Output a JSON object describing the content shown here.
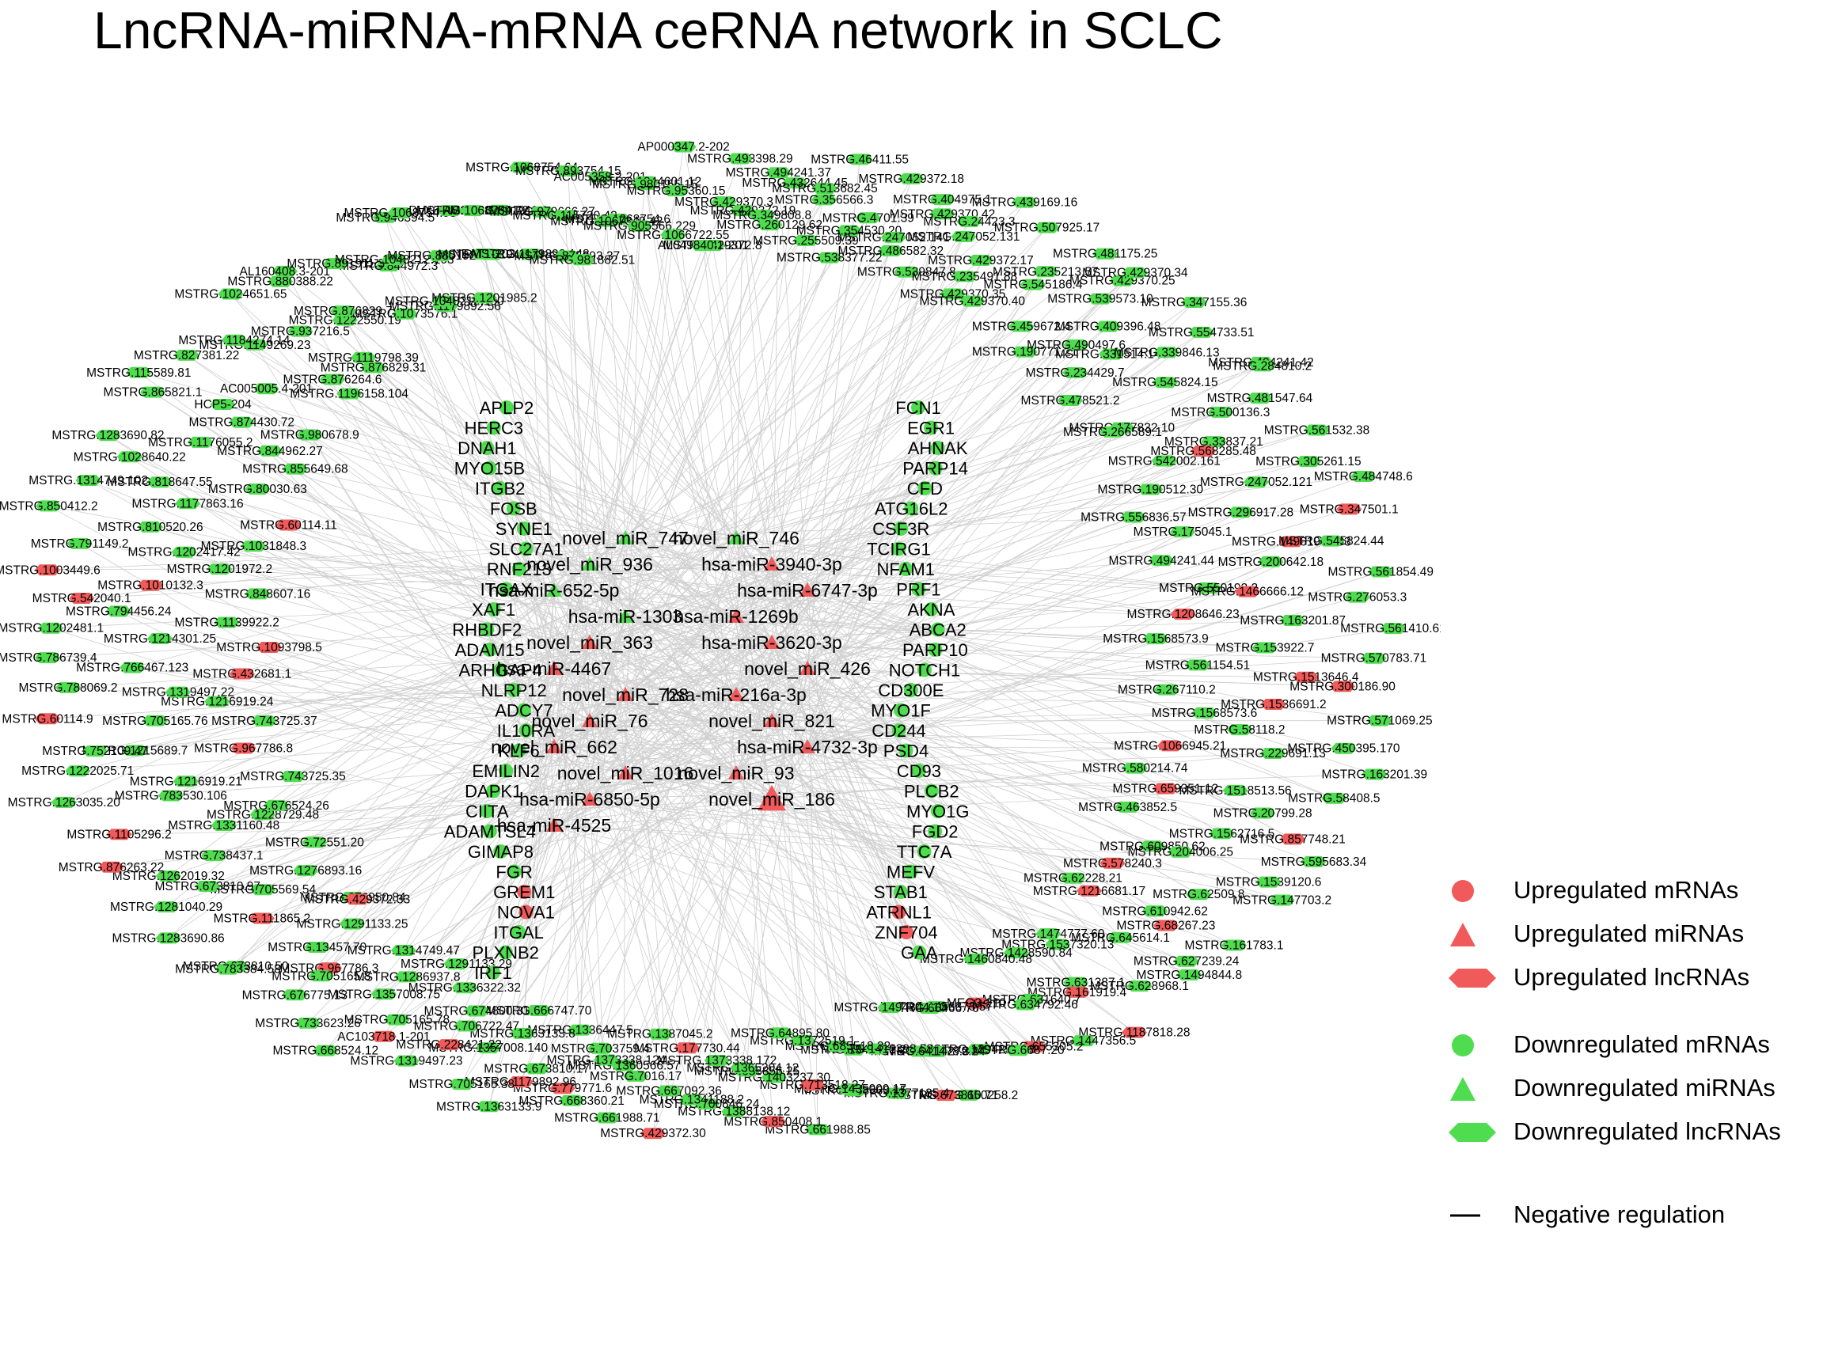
{
  "title": "LncRNA-miRNA-mRNA ceRNA network in SCLC",
  "colors": {
    "up": "#f05a5a",
    "down": "#4fdc4f",
    "edge": "#cfcfcf"
  },
  "legend": [
    {
      "shape": "circle",
      "color": "#f05a5a",
      "label": "Upregulated mRNAs"
    },
    {
      "shape": "triangle",
      "color": "#f05a5a",
      "label": "Upregulated miRNAs"
    },
    {
      "shape": "hexagon",
      "color": "#f05a5a",
      "label": "Upregulated lncRNAs"
    },
    {
      "shape": "circle",
      "color": "#4fdc4f",
      "label": "Downregulated mRNAs"
    },
    {
      "shape": "triangle",
      "color": "#4fdc4f",
      "label": "Downregulated miRNAs"
    },
    {
      "shape": "hexagon",
      "color": "#4fdc4f",
      "label": "Downregulated lncRNAs"
    },
    {
      "shape": "line",
      "color": "#000000",
      "label": "Negative regulation"
    }
  ],
  "mirnas": [
    {
      "label": "novel_miR_747",
      "up": false
    },
    {
      "label": "novel_miR_746",
      "up": false
    },
    {
      "label": "novel_miR_936",
      "up": false
    },
    {
      "label": "hsa-miR-3940-3p",
      "up": true
    },
    {
      "label": "hsa-miR-652-5p",
      "up": false
    },
    {
      "label": "hsa-miR-6747-3p",
      "up": true
    },
    {
      "label": "hsa-miR-1303",
      "up": false
    },
    {
      "label": "hsa-miR-1269b",
      "up": true
    },
    {
      "label": "novel_miR_363",
      "up": true
    },
    {
      "label": "hsa-miR-3620-3p",
      "up": true
    },
    {
      "label": "hsa-miR-4467",
      "up": true
    },
    {
      "label": "novel_miR_426",
      "up": true
    },
    {
      "label": "novel_miR_728",
      "up": true
    },
    {
      "label": "hsa-miR-216a-3p",
      "up": true
    },
    {
      "label": "novel_miR_76",
      "up": true
    },
    {
      "label": "novel_miR_821",
      "up": true
    },
    {
      "label": "novel_miR_662",
      "up": true
    },
    {
      "label": "hsa-miR-4732-3p",
      "up": true
    },
    {
      "label": "novel_miR_1016",
      "up": true
    },
    {
      "label": "novel_miR_93",
      "up": true
    },
    {
      "label": "hsa-miR-6850-5p",
      "up": true
    },
    {
      "label": "novel_miR_186",
      "up": true
    },
    {
      "label": "hsa-miR-4525",
      "up": true
    }
  ],
  "mrnas": [
    {
      "label": "APLP2",
      "up": false
    },
    {
      "label": "FCN1",
      "up": false
    },
    {
      "label": "HERC3",
      "up": false
    },
    {
      "label": "EGR1",
      "up": false
    },
    {
      "label": "DNAH1",
      "up": false
    },
    {
      "label": "AHNAK",
      "up": false
    },
    {
      "label": "MYO15B",
      "up": false
    },
    {
      "label": "PARP14",
      "up": false
    },
    {
      "label": "ITGB2",
      "up": false
    },
    {
      "label": "CFD",
      "up": false
    },
    {
      "label": "FOSB",
      "up": false
    },
    {
      "label": "ATG16L2",
      "up": false
    },
    {
      "label": "SYNE1",
      "up": false
    },
    {
      "label": "CSF3R",
      "up": false
    },
    {
      "label": "SLC27A1",
      "up": false
    },
    {
      "label": "TCIRG1",
      "up": false
    },
    {
      "label": "RNF213",
      "up": false
    },
    {
      "label": "NFAM1",
      "up": false
    },
    {
      "label": "ITGAX",
      "up": false
    },
    {
      "label": "PRF1",
      "up": false
    },
    {
      "label": "XAF1",
      "up": false
    },
    {
      "label": "AKNA",
      "up": false
    },
    {
      "label": "RHBDF2",
      "up": false
    },
    {
      "label": "ABCA2",
      "up": false
    },
    {
      "label": "ADAM15",
      "up": false
    },
    {
      "label": "PARP10",
      "up": false
    },
    {
      "label": "ARHGAP4",
      "up": false
    },
    {
      "label": "NOTCH1",
      "up": false
    },
    {
      "label": "NLRP12",
      "up": false
    },
    {
      "label": "CD300E",
      "up": false
    },
    {
      "label": "ADCY7",
      "up": false
    },
    {
      "label": "MYO1F",
      "up": false
    },
    {
      "label": "IL10RA",
      "up": false
    },
    {
      "label": "CD244",
      "up": false
    },
    {
      "label": "KLF6",
      "up": false
    },
    {
      "label": "PSD4",
      "up": false
    },
    {
      "label": "EMILIN2",
      "up": false
    },
    {
      "label": "CD93",
      "up": false
    },
    {
      "label": "DAPK1",
      "up": false
    },
    {
      "label": "PLCB2",
      "up": false
    },
    {
      "label": "CIITA",
      "up": false
    },
    {
      "label": "MYO1G",
      "up": false
    },
    {
      "label": "ADAMTSL4",
      "up": false
    },
    {
      "label": "FGD2",
      "up": false
    },
    {
      "label": "GIMAP8",
      "up": false
    },
    {
      "label": "TTC7A",
      "up": false
    },
    {
      "label": "FGR",
      "up": false
    },
    {
      "label": "MEFV",
      "up": false
    },
    {
      "label": "GREM1",
      "up": true
    },
    {
      "label": "STAB1",
      "up": false
    },
    {
      "label": "NOVA1",
      "up": true
    },
    {
      "label": "ATRNL1",
      "up": true
    },
    {
      "label": "ITGAL",
      "up": false
    },
    {
      "label": "ZNF704",
      "up": true
    },
    {
      "label": "PLXNB2",
      "up": false
    },
    {
      "label": "GAA",
      "up": false
    },
    {
      "label": "IRF1",
      "up": false
    }
  ],
  "lncrnas": [
    "MSTRG.429372.8",
    "MSTRG.429370.3",
    "MSTRG.493398.29",
    "MSTRG.429372.19",
    "MSTRG.349808.8",
    "MSTRG.494241.37",
    "MSTRG.260129.62",
    "MSTRG.432644.45",
    "MSTRG.513682.45",
    "MSTRG.255509.39",
    "MSTRG.356566.3",
    "MSTRG.46411.55",
    "MSTRG.538377.22",
    "MSTRG.4701.39",
    "MSTRG.429372.18",
    "MSTRG.354530.20",
    "MSTRG.247052.141",
    "MSTRG.404975.1",
    "MSTRG.486582.32",
    "MSTRG.429370.42",
    "MSTRG.24423.3",
    "MSTRG.539847.8",
    "MSTRG.247052.131",
    "MSTRG.439169.16",
    "MSTRG.429370.35",
    "MSTRG.429372.17",
    "MSTRG.507925.17",
    "MSTRG.235491.88",
    "MSTRG.545186.4",
    "MSTRG.481175.25",
    "MSTRG.429370.40",
    "MSTRG.235213.57",
    "MSTRG.429370.25",
    "MSTRG.459672.4",
    "MSTRG.539573.10",
    "MSTRG.429370.34",
    "MSTRG.190771.21",
    "MSTRG.409396.48",
    "MSTRG.347155.36",
    "MSTRG.490497.6",
    "MSTRG.331514.143",
    "MSTRG.554733.51",
    "MSTRG.234429.7",
    "MSTRG.339846.13",
    "MSTRG.494241.42",
    "MSTRG.478521.2",
    "MSTRG.545824.15",
    "MSTRG.284810.2",
    "MSTRG.177832.10",
    "MSTRG.500136.3",
    "MSTRG.481547.64",
    "MSTRG.266589.1",
    "MSTRG.33837.21",
    "MSTRG.561532.38",
    "MSTRG.542002.161",
    "MSTRG.568285.48",
    "MSTRG.305261.15",
    "MSTRG.190512.30",
    "MSTRG.247052.121",
    "MSTRG.484748.6",
    "MSTRG.556836.57",
    "MSTRG.296917.28",
    "MSTRG.347501.1",
    "MSTRG.175045.1",
    "MSTRG.1496194.103",
    "MSTRG.545824.44",
    "MSTRG.494241.44",
    "MSTRG.200642.18",
    "MSTRG.561854.49",
    "MSTRG.550192.2",
    "MSTRG.1466666.12",
    "MSTRG.276053.3",
    "MSTRG.1208646.23",
    "MSTRG.163201.87",
    "MSTRG.561410.61",
    "MSTRG.1568573.9",
    "MSTRG.153922.7",
    "MSTRG.570783.71",
    "MSTRG.561154.51",
    "MSTRG.1513646.4",
    "MSTRG.300186.90",
    "MSTRG.267110.2",
    "MSTRG.1536691.2",
    "MSTRG.571069.25",
    "MSTRG.1568573.6",
    "MSTRG.58118.2",
    "MSTRG.450395.170",
    "MSTRG.1066945.21",
    "MSTRG.229691.13",
    "MSTRG.163201.39",
    "MSTRG.580214.74",
    "MSTRG.1518513.56",
    "MSTRG.58408.5",
    "MSTRG.659351.12",
    "MSTRG.20799.28",
    "MSTRG.857748.21",
    "MSTRG.463852.5",
    "MSTRG.1562716.5",
    "MSTRG.595683.34",
    "MSTRG.609850.62",
    "MSTRG.204006.25",
    "MSTRG.1539120.6",
    "MSTRG.578240.3",
    "MSTRG.62509.8",
    "MSTRG.147703.2",
    "MSTRG.62228.21",
    "MSTRG.610942.62",
    "MSTRG.161783.1",
    "MSTRG.1216681.17",
    "MSTRG.68267.23",
    "MSTRG.627239.24",
    "MSTRG.1474777.60",
    "MSTRG.645614.1",
    "MSTRG.1494844.8",
    "MSTRG.1537320.13",
    "MSTRG.631387.1",
    "MSTRG.628968.1",
    "MSTRG.1428590.84",
    "MSTRG.161919.4",
    "MSTRG.1187818.28",
    "MSTRG.1460840.48",
    "MSTRG.631640.7",
    "MSTRG.1447356.5",
    "MEG3-210",
    "MSTRG.634792.46",
    "MSTRG.655305.2",
    "MSTRG.1456373.57",
    "MSTRG.1394234.18",
    "MSTRG.6687.20",
    "MSTRG.66466.76",
    "MSTRG.14279.24",
    "MSTRG.650258.2",
    "MSTRG.1494844.10",
    "MSTRG.641478.3",
    "MSTRG.673810.71",
    "MSTRG.1341295.2",
    "MSTRG.1412398.58",
    "MSTRG.1377135.4",
    "MSTRG.685518.32",
    "MSTRG.668360.15",
    "MSTRG.1435009.17",
    "MSTRG.1372519.1",
    "MSTRG.713518.27",
    "MSTRG.661988.85",
    "MSTRG.64895.80",
    "MSTRG.1403237.30",
    "MSTRG.850408.1",
    "MSTRG.685856.25",
    "MSTRG.1365204.12",
    "MSTRG.1388138.12",
    "MSTRG.1373338.172",
    "MSTRG.700846.24",
    "MSTRG.1341188.2",
    "MSTRG.177730.44",
    "MSTRG.667092.36",
    "MSTRG.429372.30",
    "MSTRG.1387045.2",
    "MSTRG.7016.17",
    "MSTRG.661988.71",
    "MSTRG.1360566.57",
    "MSTRG.1373338.124",
    "MSTRG.668360.21",
    "MSTRG.703759.4",
    "MSTRG.779771.6",
    "MSTRG.1179892.96",
    "MSTRG.1336447.5",
    "MSTRG.673810.17",
    "MSTRG.1363133.9",
    "MSTRG.666747.70",
    "MSTRG.1357008.140",
    "MSTRG.705165.38",
    "MSTRG.1363133.8",
    "MSTRG.706722.47",
    "MSTRG.1319497.23",
    "MSTRG.674800.31",
    "MSTRG.228421.22",
    "AC103718.1-201",
    "MSTRG.1336322.32",
    "MSTRG.705165.78",
    "MSTRG.668524.12",
    "MSTRG.1291133.29",
    "MSTRG.1357008.75",
    "MSTRG.733623.26",
    "MSTRG.1286937.8",
    "MSTRG.967786.3",
    "MSTRG.676775.13",
    "MSTRG.1314749.47",
    "MSTRG.705165.8",
    "MSTRG.673810.50",
    "MSTRG.1291133.25",
    "MSTRG.13457.70",
    "MSTRG.783384.58",
    "MSTRG.676950.84",
    "MSTRG.111865.2",
    "MSTRG.1283690.86",
    "MSTRG.429372.33",
    "MSTRG.705569.54",
    "MSTRG.1281040.29",
    "MSTRG.1276893.16",
    "MSTRG.673810.97",
    "MSTRG.1262019.32",
    "MSTRG.72551.20",
    "MSTRG.738437.1",
    "MSTRG.876263.22",
    "MSTRG.1228729.48",
    "MSTRG.1331160.48",
    "MSTRG.1105296.2",
    "MSTRG.676524.26",
    "MSTRG.783530.106",
    "MSTRG.1263035.20",
    "MSTRG.743725.35",
    "MSTRG.1216919.21",
    "MSTRG.1222025.71",
    "MSTRG.967786.8",
    "MSTRG.1215689.7",
    "MSTRG.752109.47",
    "MSTRG.743725.37",
    "MSTRG.705165.76",
    "MSTRG.60114.9",
    "MSTRG.1216919.24",
    "MSTRG.1319497.22",
    "MSTRG.788069.2",
    "MSTRG.432681.1",
    "MSTRG.766467.123",
    "MSTRG.786739.4",
    "MSTRG.1093798.5",
    "MSTRG.1214301.25",
    "MSTRG.1202481.1",
    "MSTRG.1139922.2",
    "MSTRG.794456.24",
    "MSTRG.542040.1",
    "MSTRG.848607.16",
    "MSTRG.1010132.3",
    "MSTRG.1003449.6",
    "MSTRG.1201972.2",
    "MSTRG.1202417.42",
    "MSTRG.791149.2",
    "MSTRG.1031848.3",
    "MSTRG.810520.26",
    "MSTRG.850412.2",
    "MSTRG.60114.11",
    "MSTRG.1177863.16",
    "MSTRG.1314749.102",
    "MSTRG.80030.63",
    "MSTRG.818647.55",
    "MSTRG.1028640.22",
    "MSTRG.855649.68",
    "MSTRG.1176055.2",
    "MSTRG.1283690.82",
    "MSTRG.844962.27",
    "MSTRG.874430.72",
    "MSTRG.865821.1",
    "MSTRG.980678.9",
    "HCP5-204",
    "MSTRG.115589.81",
    "MSTRG.1196158.104",
    "AC005005.4-201",
    "MSTRG.827381.22",
    "MSTRG.876264.6",
    "MSTRG.1149269.23",
    "MSTRG.1184274.14",
    "MSTRG.876829.31",
    "MSTRG.937216.5",
    "MSTRG.1024651.65",
    "MSTRG.1119798.39",
    "MSTRG.1222550.19",
    "MSTRG.880388.22",
    "MSTRG.1073576.1",
    "MSTRG.876829.7",
    "AL160408.3-201",
    "MSTRG.1179892.56",
    "MSTRG.844972.3",
    "MSTRG.891911.3",
    "MSTRG.1048212.100",
    "MSTRG.1048212.103",
    "MSTRG.946394.5",
    "MSTRG.1201985.2",
    "MSTRG.880192.55",
    "MSTRG.1068754.98",
    "MSTRG.851945.19",
    "NEAT1-203",
    "DLX6-AS1-201",
    "MSTRG.1179892.148",
    "MSTRG.891911.1",
    "MSTRG.1068754.72",
    "MSTRG.875093.37",
    "MSTRG.979666.27",
    "MSTRG.1068754.64",
    "MSTRG.981882.51",
    "MSTRG.115720.42",
    "MSTRG.893754.15",
    "MSTRG.1068754.6",
    "MSTRG.1067349.42",
    "AC005358.2-201",
    "MSTRG.905566.229",
    "MSTRG.1044601.12",
    "MSTRG.980155.15",
    "MSTRG.1066722.55",
    "MSTRG.95360.15",
    "AP000347.2-202",
    "AL049840.1-201"
  ],
  "up_lncrnas": [
    "MSTRG.568285.48",
    "MSTRG.347501.1",
    "MSTRG.1496194.103",
    "MSTRG.1466666.12",
    "MSTRG.1208646.23",
    "MSTRG.1513646.4",
    "MSTRG.300186.90",
    "MSTRG.1536691.2",
    "MSTRG.1066945.21",
    "MSTRG.659351.12",
    "MSTRG.857748.21",
    "MSTRG.578240.3",
    "MSTRG.1216681.17",
    "MSTRG.68267.23",
    "MSTRG.161919.4",
    "MSTRG.1187818.28",
    "MEG3-210",
    "MSTRG.655305.2",
    "MSTRG.673810.71",
    "MSTRG.713518.27",
    "MSTRG.850408.1",
    "MSTRG.177730.44",
    "MSTRG.429372.30",
    "MSTRG.779771.6",
    "MSTRG.1179892.96",
    "MSTRG.228421.22",
    "AC103718.1-201",
    "MSTRG.967786.3",
    "MSTRG.111865.2",
    "MSTRG.429372.33",
    "MSTRG.876263.22",
    "MSTRG.1105296.2",
    "MSTRG.967786.8",
    "MSTRG.60114.9",
    "MSTRG.432681.1",
    "MSTRG.1093798.5",
    "MSTRG.542040.1",
    "MSTRG.1010132.3",
    "MSTRG.1003449.6",
    "MSTRG.60114.11"
  ]
}
